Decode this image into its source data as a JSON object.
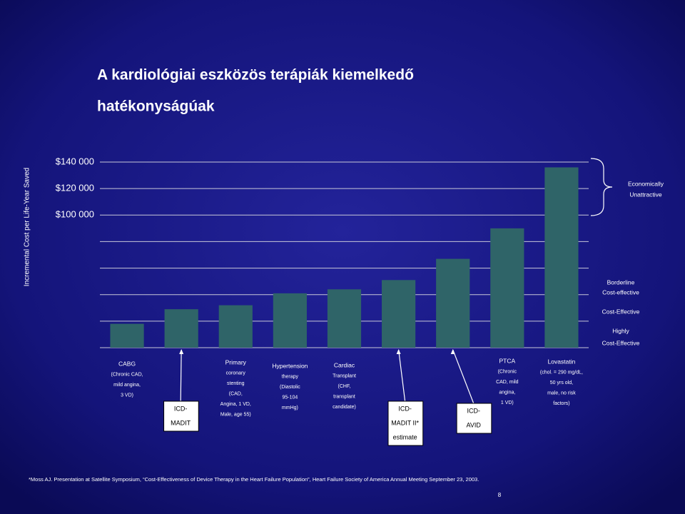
{
  "chart_data": {
    "type": "bar",
    "title": [
      "A kardiológiai eszközös terápiák kiemelkedő",
      "hatékonyságúak"
    ],
    "ylabel": "Incremental Cost per Life-Year Saved",
    "color": "#2f6468",
    "ylim": [
      0,
      140000
    ],
    "yticks": [
      {
        "value": 100000,
        "label": "$100 000"
      },
      {
        "value": 120000,
        "label": "$120 000"
      },
      {
        "value": 140000,
        "label": "$140 000"
      }
    ],
    "ygrid": [
      20000,
      40000,
      60000,
      80000,
      100000,
      120000,
      140000
    ],
    "categories": [
      {
        "lines": [
          "CABG",
          "(Chronic CAD,",
          "mild angina,",
          "3 VD)"
        ],
        "boxed": false
      },
      {
        "lines": [
          "ICD-",
          "MADIT"
        ],
        "boxed": true
      },
      {
        "lines": [
          "Primary",
          "coronary",
          "stenting",
          "(CAD,",
          "Angina, 1 VD,",
          "Male, age 55)"
        ],
        "boxed": false
      },
      {
        "lines": [
          "Hypertension",
          "therapy",
          "(Diastolic",
          "95-104",
          "mmHg)"
        ],
        "boxed": false
      },
      {
        "lines": [
          "Cardiac",
          "Transplant",
          "(CHF,",
          "transplant",
          "candidate)"
        ],
        "boxed": false
      },
      {
        "lines": [
          "ICD-",
          "MADIT II*",
          "estimate"
        ],
        "boxed": true
      },
      {
        "lines": [
          "ICD-",
          "AVID"
        ],
        "boxed": true
      },
      {
        "lines": [
          "PTCA",
          "(Chronic",
          "CAD, mild",
          "angina,",
          "1 VD)"
        ],
        "boxed": false
      },
      {
        "lines": [
          "Lovastatin",
          "(chol. = 290 mg/dL,",
          "50 yrs old,",
          "male, no risk",
          "factors)"
        ],
        "boxed": false
      }
    ],
    "values": [
      18000,
      29000,
      32000,
      41000,
      44000,
      51000,
      67000,
      90000,
      136000
    ],
    "zones": [
      [
        "Economically",
        "Unattractive"
      ],
      [
        "Borderline",
        "Cost-effective"
      ],
      [
        "Cost-Effective"
      ],
      [
        "Highly",
        "Cost-Effective"
      ]
    ],
    "footnote": "*Moss AJ. Presentation at Satellite Symposium, “Cost-Effectiveness of Device Therapy in the Heart Failure Population”, Heart Failure Society of America Annual Meeting September 23, 2003.",
    "page_number": "8"
  }
}
